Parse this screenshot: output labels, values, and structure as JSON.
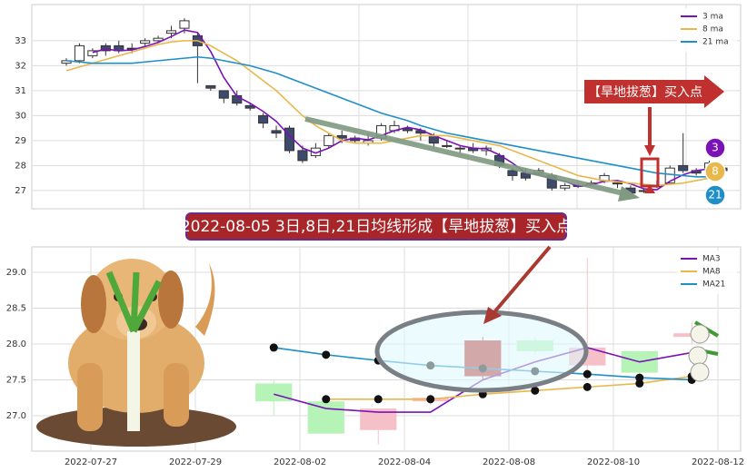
{
  "chart_data": [
    {
      "type": "candlestick",
      "annotation": "【旱地拔葱】买入点",
      "badges": [
        "3",
        "8",
        "21"
      ],
      "open": [
        32.1,
        32.2,
        32.4,
        32.8,
        32.8,
        32.7,
        32.9,
        33.0,
        33.3,
        33.5,
        33.2,
        31.2,
        31.0,
        30.8,
        30.4,
        30.0,
        29.4,
        29.5,
        28.6,
        28.4,
        28.8,
        29.2,
        29.1,
        28.9,
        29.1,
        29.4,
        29.5,
        29.4,
        29.2,
        28.8,
        28.7,
        28.7,
        28.6,
        28.4,
        27.8,
        27.7,
        27.7,
        27.6,
        27.1,
        27.2,
        27.3,
        27.4,
        27.3,
        27.1,
        27.0,
        27.2,
        27.3,
        28.0,
        27.8,
        27.9,
        27.9
      ],
      "high": [
        32.3,
        32.9,
        32.7,
        32.9,
        33.0,
        32.9,
        33.1,
        33.2,
        33.6,
        33.9,
        33.3,
        31.2,
        31.0,
        31.0,
        30.5,
        30.1,
        29.6,
        29.6,
        28.8,
        28.9,
        29.3,
        29.4,
        29.2,
        29.3,
        29.7,
        29.8,
        29.6,
        29.5,
        29.3,
        29.0,
        28.8,
        28.9,
        28.8,
        28.5,
        27.9,
        27.9,
        27.9,
        27.7,
        27.3,
        27.3,
        27.4,
        27.7,
        27.4,
        27.2,
        27.1,
        27.4,
        28.0,
        29.3,
        27.9,
        28.2,
        28.0
      ],
      "low": [
        32.0,
        32.1,
        32.3,
        32.4,
        32.5,
        32.5,
        32.8,
        32.9,
        33.1,
        33.3,
        31.3,
        31.0,
        30.5,
        30.4,
        30.2,
        29.5,
        29.1,
        28.5,
        28.1,
        28.3,
        28.7,
        28.9,
        28.9,
        28.8,
        29.0,
        29.3,
        29.3,
        29.0,
        28.7,
        28.7,
        28.5,
        28.5,
        28.4,
        27.9,
        27.4,
        27.4,
        27.6,
        27.0,
        27.0,
        27.1,
        27.2,
        27.3,
        27.1,
        26.8,
        26.9,
        27.1,
        27.3,
        27.7,
        27.6,
        27.8,
        27.7
      ],
      "close": [
        32.2,
        32.8,
        32.6,
        32.6,
        32.6,
        32.7,
        33.0,
        33.1,
        33.4,
        33.8,
        32.8,
        31.1,
        30.7,
        30.5,
        30.3,
        29.7,
        29.3,
        28.6,
        28.2,
        28.7,
        29.2,
        29.1,
        29.0,
        29.0,
        29.6,
        29.6,
        29.4,
        29.3,
        28.9,
        28.8,
        28.7,
        28.6,
        28.7,
        28.0,
        27.6,
        27.5,
        27.8,
        27.1,
        27.2,
        27.2,
        27.3,
        27.6,
        27.3,
        26.9,
        27.0,
        27.2,
        27.9,
        27.8,
        27.7,
        28.1,
        27.8
      ],
      "up_color": "#ffffff",
      "down_color": "#3d4a6b",
      "edge_color": "#333333",
      "series": [
        {
          "name": "3 ma",
          "color": "#7b12b8",
          "values": [
            null,
            null,
            32.53,
            32.67,
            32.6,
            32.63,
            32.77,
            32.93,
            33.17,
            33.43,
            33.33,
            32.57,
            31.53,
            30.77,
            30.5,
            30.17,
            29.77,
            29.2,
            28.7,
            28.5,
            28.7,
            29.0,
            29.1,
            29.03,
            29.2,
            29.4,
            29.53,
            29.43,
            29.2,
            29.0,
            28.8,
            28.7,
            28.67,
            28.43,
            28.1,
            27.7,
            27.63,
            27.47,
            27.37,
            27.17,
            27.23,
            27.37,
            27.4,
            27.27,
            27.07,
            27.03,
            27.37,
            27.63,
            27.8,
            27.87,
            27.87
          ]
        },
        {
          "name": "8 ma",
          "color": "#e8b84a",
          "values": [
            31.8,
            31.95,
            32.1,
            32.25,
            32.4,
            32.55,
            32.7,
            32.85,
            32.95,
            33.0,
            33.0,
            32.8,
            32.5,
            32.2,
            31.8,
            31.4,
            31.0,
            30.5,
            30.0,
            29.6,
            29.3,
            29.0,
            28.9,
            28.9,
            28.9,
            29.0,
            29.1,
            29.2,
            29.2,
            29.2,
            29.1,
            29.0,
            28.9,
            28.8,
            28.6,
            28.4,
            28.2,
            28.0,
            27.8,
            27.6,
            27.5,
            27.4,
            27.35,
            27.3,
            27.25,
            27.2,
            27.25,
            27.3,
            27.4,
            27.5,
            27.55
          ]
        },
        {
          "name": "21 ma",
          "color": "#1f8fc7",
          "values": [
            32.2,
            32.15,
            32.1,
            32.1,
            32.1,
            32.1,
            32.15,
            32.2,
            32.25,
            32.3,
            32.35,
            32.3,
            32.2,
            32.1,
            32.0,
            31.85,
            31.7,
            31.5,
            31.3,
            31.1,
            30.9,
            30.7,
            30.5,
            30.3,
            30.1,
            29.95,
            29.8,
            29.6,
            29.45,
            29.3,
            29.2,
            29.1,
            29.0,
            28.9,
            28.8,
            28.7,
            28.6,
            28.5,
            28.4,
            28.3,
            28.2,
            28.1,
            28.0,
            27.9,
            27.8,
            27.7,
            27.65,
            27.6,
            27.55,
            27.55,
            27.55
          ]
        }
      ],
      "ylim": [
        26.27,
        34.45
      ],
      "yticks": [
        27,
        28,
        29,
        30,
        31,
        32,
        33
      ],
      "grid": true,
      "legend": "upper right"
    },
    {
      "type": "candlestick",
      "title": "2022-08-05 3日,8日,21日均线形成【旱地拔葱】买入点",
      "categories": [
        "2022-07-27",
        null,
        "2022-07-29",
        null,
        "2022-08-02",
        null,
        "2022-08-04",
        null,
        "2022-08-08",
        null,
        "2022-08-10",
        null,
        "2022-08-12"
      ],
      "open": [
        null,
        null,
        null,
        27.45,
        27.2,
        26.8,
        27.2,
        27.55,
        28.05,
        27.7,
        27.9,
        28.1,
        null
      ],
      "high": [
        null,
        null,
        null,
        27.5,
        27.2,
        27.1,
        27.3,
        28.1,
        28.1,
        29.2,
        27.9,
        28.3,
        null
      ],
      "low": [
        null,
        null,
        null,
        27.0,
        26.75,
        26.6,
        27.15,
        27.5,
        27.85,
        27.5,
        27.55,
        28.0,
        null
      ],
      "close": [
        null,
        null,
        null,
        27.2,
        26.75,
        27.1,
        27.25,
        28.05,
        27.9,
        27.95,
        27.6,
        28.15,
        null
      ],
      "up_color": "#f6c0c8",
      "down_color": "#b6f3b6",
      "highlight": {
        "index": 7,
        "color": "#c0302e"
      },
      "series": [
        {
          "name": "MA3",
          "color": "#7b12b8",
          "values": [
            null,
            null,
            null,
            27.3,
            27.1,
            27.05,
            27.05,
            27.5,
            27.75,
            27.95,
            27.75,
            27.88,
            null
          ]
        },
        {
          "name": "MA8",
          "color": "#e8b84a",
          "marker": true,
          "values": [
            null,
            null,
            null,
            null,
            27.23,
            27.23,
            27.23,
            27.3,
            27.35,
            27.4,
            27.45,
            27.55,
            null
          ]
        },
        {
          "name": "MA21",
          "color": "#1f8fc7",
          "marker": true,
          "values": [
            null,
            null,
            null,
            27.95,
            27.85,
            27.77,
            27.7,
            27.66,
            27.62,
            27.58,
            27.53,
            27.5,
            null
          ]
        }
      ],
      "ylim": [
        26.506,
        29.354
      ],
      "yticks": [
        {
          "value": 27,
          "label": "27.0"
        },
        {
          "value": 27.5,
          "label": "27.5"
        },
        {
          "value": 28,
          "label": "28.0"
        },
        {
          "value": 28.5,
          "label": "28.5"
        },
        {
          "value": 29,
          "label": "29.0"
        }
      ],
      "grid": true,
      "legend": "upper right"
    }
  ]
}
